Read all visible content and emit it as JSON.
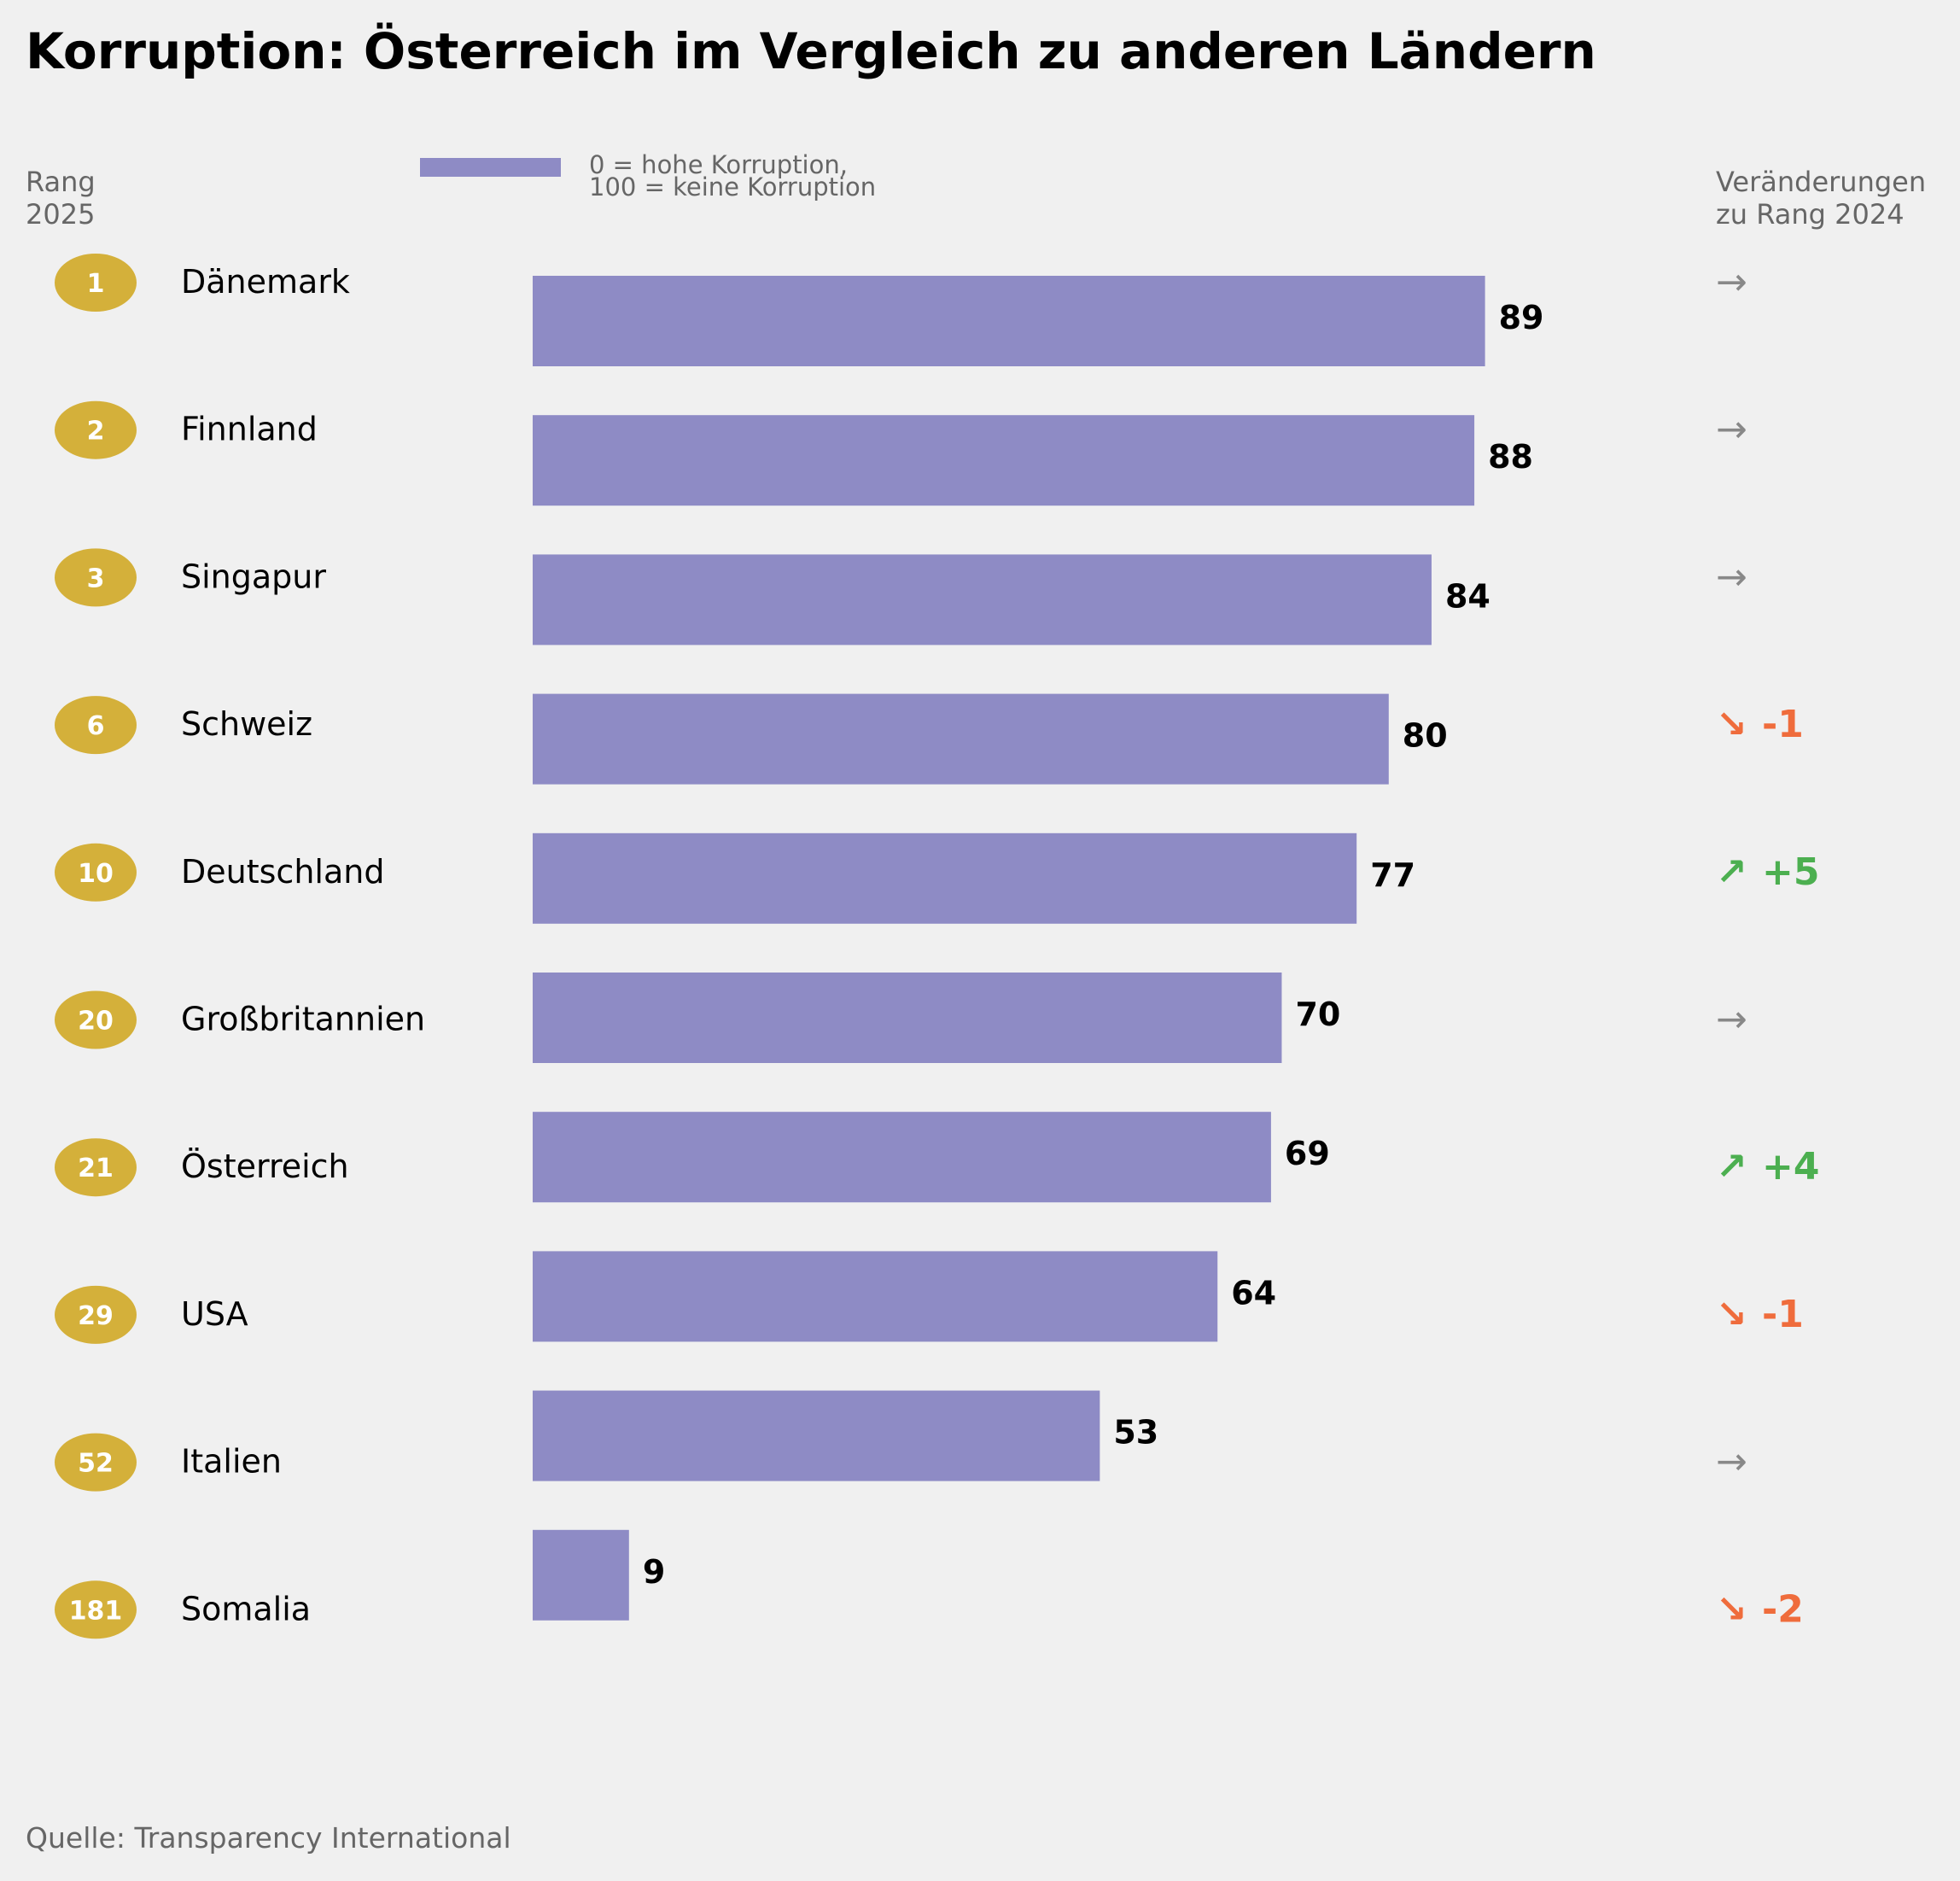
{
  "title": "Korruption: Österreich im Vergleich zu anderen Ländern",
  "header_left": "Rang\n2025",
  "header_right": "Veränderungen\nzu Rang 2024",
  "legend_text": "0 = hohe Korruption,\n100 = keine Korruption",
  "source": "Quelle: Transparency International",
  "colors": {
    "bar": "#8e8bc5",
    "rank_badge": "#d4b03a",
    "rank_text": "#ffffff",
    "change_up": "#4caf50",
    "change_down": "#ef6c3c",
    "change_same": "#888888",
    "background": "#f0f0f0"
  },
  "chart_data": {
    "type": "bar",
    "orientation": "horizontal",
    "xlim": [
      0,
      100
    ],
    "grid": false,
    "legend_placement": "top-center",
    "rows": [
      {
        "rank": "1",
        "country": "Dänemark",
        "value": 89,
        "change_dir": "same",
        "change": ""
      },
      {
        "rank": "2",
        "country": "Finnland",
        "value": 88,
        "change_dir": "same",
        "change": ""
      },
      {
        "rank": "3",
        "country": "Singapur",
        "value": 84,
        "change_dir": "same",
        "change": ""
      },
      {
        "rank": "6",
        "country": "Schweiz",
        "value": 80,
        "change_dir": "down",
        "change": "-1"
      },
      {
        "rank": "10",
        "country": "Deutschland",
        "value": 77,
        "change_dir": "up",
        "change": "+5"
      },
      {
        "rank": "20",
        "country": "Großbritannien",
        "value": 70,
        "change_dir": "same",
        "change": ""
      },
      {
        "rank": "21",
        "country": "Österreich",
        "value": 69,
        "change_dir": "up",
        "change": "+4"
      },
      {
        "rank": "29",
        "country": "USA",
        "value": 64,
        "change_dir": "down",
        "change": "-1"
      },
      {
        "rank": "52",
        "country": "Italien",
        "value": 53,
        "change_dir": "same",
        "change": ""
      },
      {
        "rank": "181",
        "country": "Somalia",
        "value": 9,
        "change_dir": "down",
        "change": "-2"
      }
    ]
  }
}
